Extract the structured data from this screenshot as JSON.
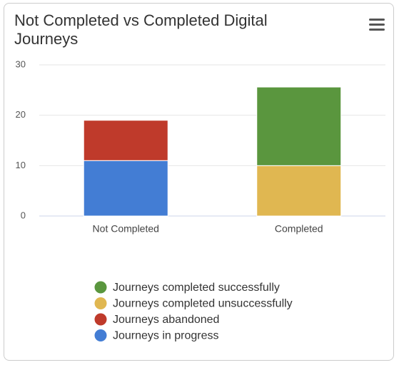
{
  "chart_data": {
    "type": "stacked_bar",
    "title": "Not Completed vs Completed Digital Journeys",
    "categories": [
      "Not Completed",
      "Completed"
    ],
    "series": [
      {
        "name": "Journeys completed successfully",
        "color": "#5a963e",
        "values": [
          null,
          15.6
        ]
      },
      {
        "name": "Journeys completed unsuccessfully",
        "color": "#e0b751",
        "values": [
          null,
          10
        ]
      },
      {
        "name": "Journeys abandoned",
        "color": "#bf3a2b",
        "values": [
          8,
          null
        ]
      },
      {
        "name": "Journeys in progress",
        "color": "#437dd4",
        "values": [
          11,
          null
        ]
      }
    ],
    "ylim": [
      0,
      30
    ],
    "yticks": [
      0,
      10,
      20,
      30
    ],
    "grid": true
  }
}
